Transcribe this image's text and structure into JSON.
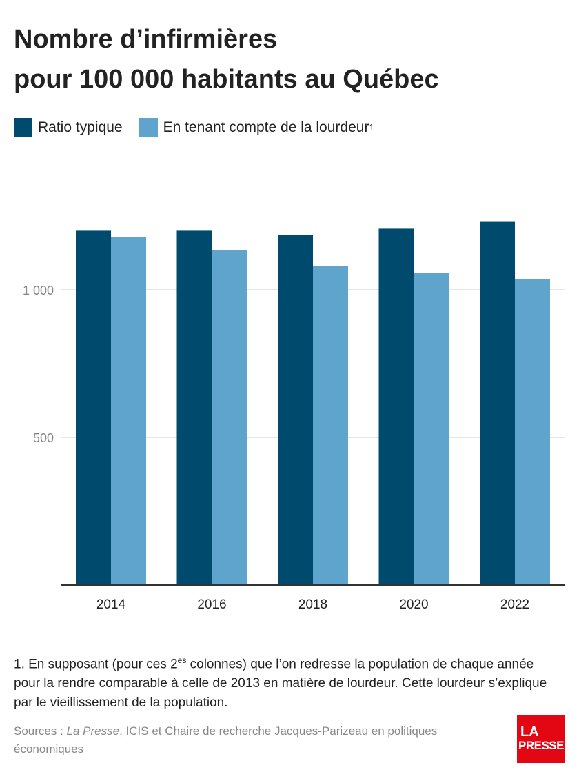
{
  "title_line1": "Nombre d’infirmières",
  "title_line2": "pour 100 000 habitants au Québec",
  "legend": {
    "item1": "Ratio typique",
    "item2": "En tenant compte de la lourdeur",
    "item2_sup": "1"
  },
  "chart_data": {
    "type": "bar",
    "categories": [
      "2014",
      "2016",
      "2018",
      "2020",
      "2022"
    ],
    "series": [
      {
        "name": "Ratio typique",
        "values": [
          1200,
          1200,
          1185,
          1207,
          1230
        ],
        "color": "#004a6e"
      },
      {
        "name": "En tenant compte de la lourdeur",
        "values": [
          1178,
          1135,
          1080,
          1058,
          1036
        ],
        "color": "#5fa4cd"
      }
    ],
    "yticks": [
      {
        "value": 500,
        "label": "500"
      },
      {
        "value": 1000,
        "label": "1 000"
      }
    ],
    "ylim": [
      0,
      1400
    ],
    "grid": true
  },
  "footnote": {
    "part1": "1. En supposant (pour ces 2",
    "sup": "es",
    "part2": " colonnes) que l’on redresse la population de chaque année pour la rendre comparable à celle de 2013 en matière de lourdeur. Cette lourdeur s’explique par le vieillissement de la population."
  },
  "sources": {
    "prefix": "Sources : ",
    "italic": "La Presse",
    "rest": ", ICIS et Chaire de recherche Jacques-Parizeau en politiques économiques"
  },
  "logo": {
    "line1": "LA",
    "line2": "PRESSE"
  }
}
